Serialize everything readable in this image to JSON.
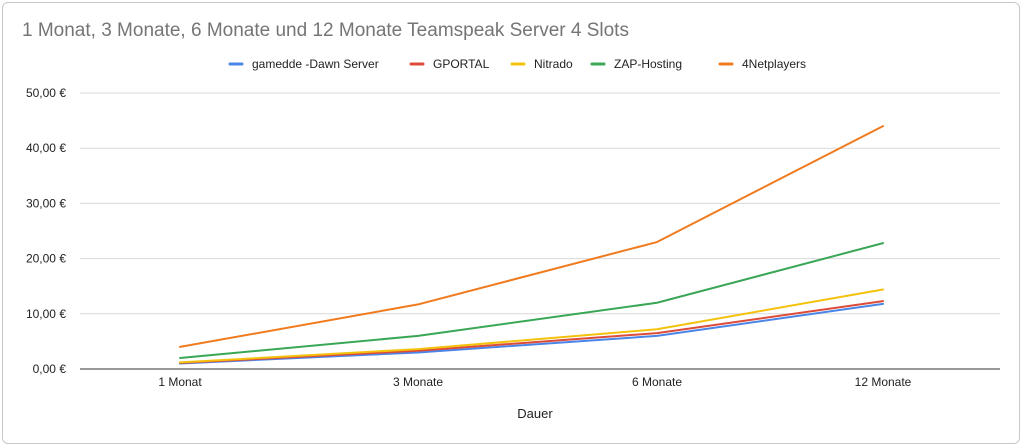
{
  "chart_data": {
    "type": "line",
    "title": "1 Monat, 3 Monate, 6 Monate und 12 Monate Teamspeak Server 4 Slots",
    "xlabel": "Dauer",
    "ylabel": "",
    "categories": [
      "1 Monat",
      "3 Monate",
      "6 Monate",
      "12 Monate"
    ],
    "ylim": [
      0,
      50
    ],
    "yticks": [
      0,
      10,
      20,
      30,
      40,
      50
    ],
    "ytick_labels": [
      "0,00 €",
      "10,00 €",
      "20,00 €",
      "30,00 €",
      "40,00 €",
      "50,00 €"
    ],
    "grid": true,
    "legend_position": "top",
    "series": [
      {
        "name": "gamedde -Dawn Server",
        "color": "#4a86e8",
        "values": [
          1.0,
          3.0,
          6.0,
          11.8
        ]
      },
      {
        "name": "GPORTAL",
        "color": "#dd4b39",
        "values": [
          1.1,
          3.3,
          6.5,
          12.3
        ]
      },
      {
        "name": "Nitrado",
        "color": "#f4c20d",
        "values": [
          1.2,
          3.6,
          7.2,
          14.4
        ]
      },
      {
        "name": "ZAP-Hosting",
        "color": "#3aa757",
        "values": [
          2.0,
          6.0,
          12.0,
          22.8
        ]
      },
      {
        "name": "4Netplayers",
        "color": "#f07b1f",
        "values": [
          4.0,
          11.7,
          23.0,
          44.0
        ]
      }
    ]
  }
}
